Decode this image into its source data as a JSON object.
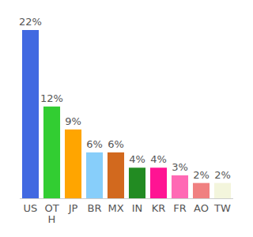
{
  "chart_data": {
    "type": "bar",
    "categories": [
      "US",
      "OTH",
      "JP",
      "BR",
      "MX",
      "IN",
      "KR",
      "FR",
      "AO",
      "TW"
    ],
    "values": [
      22,
      12,
      9,
      6,
      6,
      4,
      4,
      3,
      2,
      2
    ],
    "value_labels": [
      "22%",
      "12%",
      "9%",
      "6%",
      "6%",
      "4%",
      "4%",
      "3%",
      "2%",
      "2%"
    ],
    "colors": [
      "#4169e1",
      "#32cd32",
      "#ffa500",
      "#87cefa",
      "#d2691e",
      "#228b22",
      "#ff1493",
      "#ff69b4",
      "#f08080",
      "#f3f5dc"
    ],
    "data_labels": true,
    "tick_labels": "x"
  }
}
